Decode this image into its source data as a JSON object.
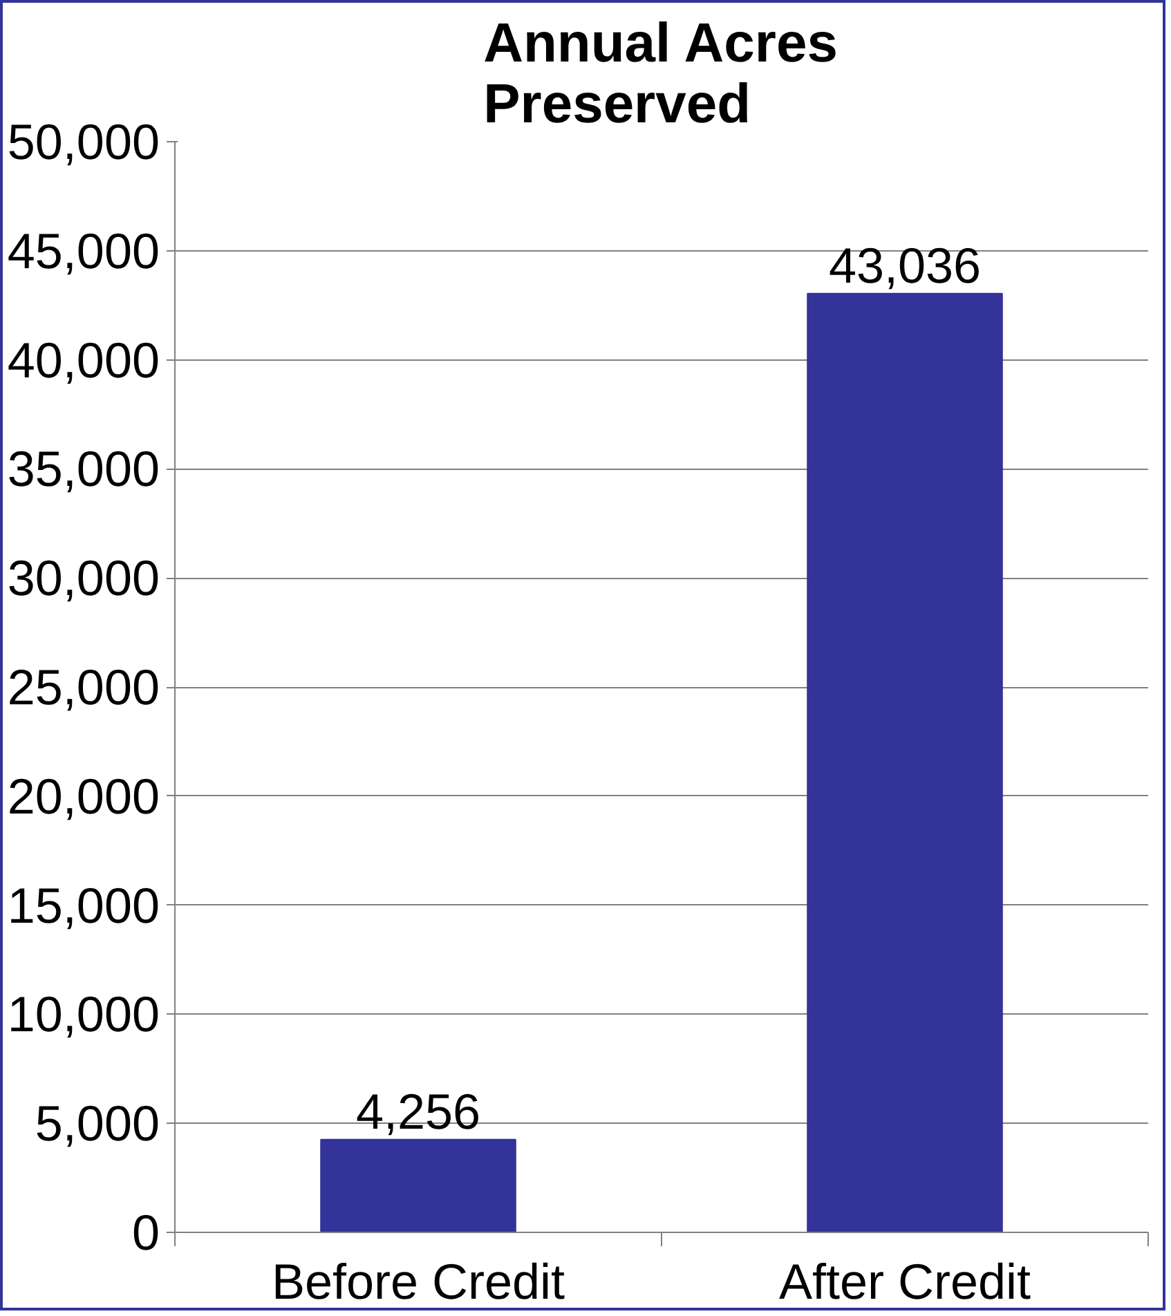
{
  "chart_data": {
    "type": "bar",
    "title": "Annual Acres Preserved",
    "categories": [
      "Before Credit",
      "After Credit"
    ],
    "values": [
      4256,
      43036
    ],
    "color": "#333399",
    "ylim": [
      0,
      50000
    ],
    "yticks": [
      {
        "value": 0,
        "label": "0"
      },
      {
        "value": 5000,
        "label": "5,000"
      },
      {
        "value": 10000,
        "label": "10,000"
      },
      {
        "value": 15000,
        "label": "15,000"
      },
      {
        "value": 20000,
        "label": "20,000"
      },
      {
        "value": 25000,
        "label": "25,000"
      },
      {
        "value": 30000,
        "label": "30,000"
      },
      {
        "value": 35000,
        "label": "35,000"
      },
      {
        "value": 40000,
        "label": "40,000"
      },
      {
        "value": 45000,
        "label": "45,000"
      },
      {
        "value": 50000,
        "label": "50,000"
      }
    ],
    "grid": "y",
    "value_labels": [
      "4,256",
      "43,036"
    ]
  }
}
